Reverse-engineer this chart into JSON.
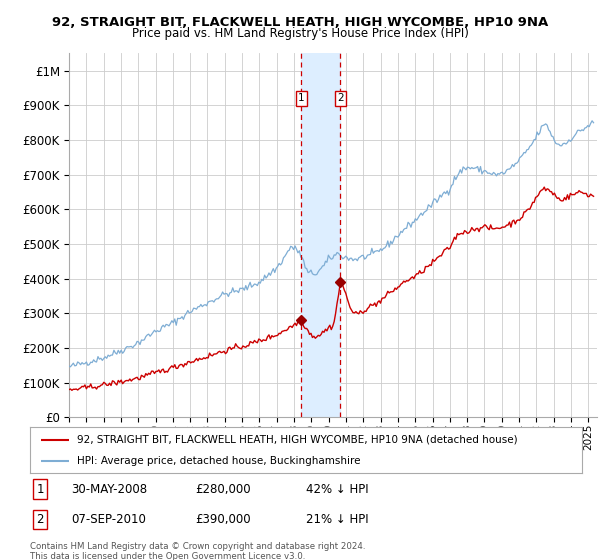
{
  "title": "92, STRAIGHT BIT, FLACKWELL HEATH, HIGH WYCOMBE, HP10 9NA",
  "subtitle": "Price paid vs. HM Land Registry's House Price Index (HPI)",
  "legend_line1": "92, STRAIGHT BIT, FLACKWELL HEATH, HIGH WYCOMBE, HP10 9NA (detached house)",
  "legend_line2": "HPI: Average price, detached house, Buckinghamshire",
  "annotation1_date": "30-MAY-2008",
  "annotation1_price": "£280,000",
  "annotation1_hpi": "42% ↓ HPI",
  "annotation1_year": 2008.41,
  "annotation1_value": 280000,
  "annotation2_date": "07-SEP-2010",
  "annotation2_price": "£390,000",
  "annotation2_hpi": "21% ↓ HPI",
  "annotation2_year": 2010.68,
  "annotation2_value": 390000,
  "red_line_color": "#cc0000",
  "blue_line_color": "#7eadd4",
  "shade_color": "#ddeeff",
  "vline_color": "#cc0000",
  "marker_color": "#990000",
  "bg_color": "#ffffff",
  "grid_color": "#cccccc",
  "footer_text": "Contains HM Land Registry data © Crown copyright and database right 2024.\nThis data is licensed under the Open Government Licence v3.0.",
  "ylim": [
    0,
    1050000
  ],
  "xlim_start": 1995.0,
  "xlim_end": 2025.5
}
